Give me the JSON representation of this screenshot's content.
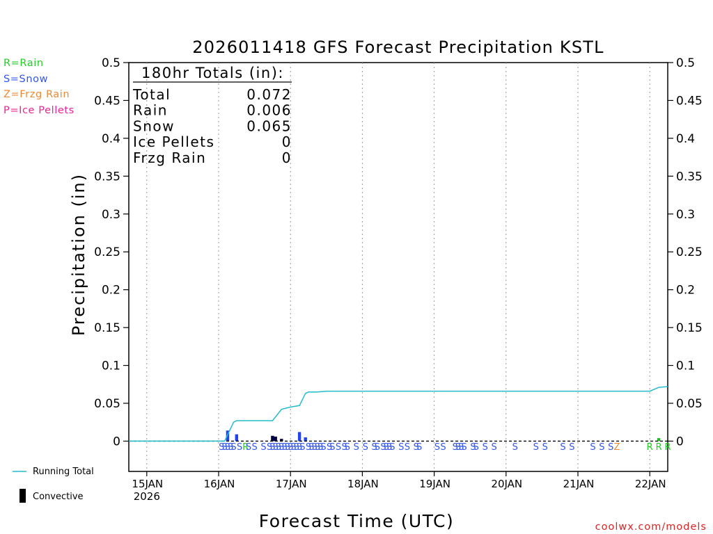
{
  "chart_data": {
    "type": "bar",
    "title": "2026011418 GFS Forecast Precipitation KSTL",
    "xlabel": "Forecast Time (UTC)",
    "ylabel": "Precipitation (in)",
    "ylim": [
      -0.04,
      0.5
    ],
    "yticks": [
      0,
      0.05,
      0.1,
      0.15,
      0.2,
      0.25,
      0.3,
      0.35,
      0.4,
      0.45,
      0.5
    ],
    "ytick_labels": [
      "0",
      "0.05",
      "0.1",
      "0.15",
      "0.2",
      "0.25",
      "0.3",
      "0.35",
      "0.4",
      "0.45",
      "0.5"
    ],
    "x_start": "2026-01-14 18:00",
    "x_end": "2026-01-22 06:00",
    "x_ticks": [
      {
        "time": "2026-01-15 00:00",
        "label": "15JAN",
        "sublabel": "2026"
      },
      {
        "time": "2026-01-16 00:00",
        "label": "16JAN",
        "sublabel": ""
      },
      {
        "time": "2026-01-17 00:00",
        "label": "17JAN",
        "sublabel": ""
      },
      {
        "time": "2026-01-18 00:00",
        "label": "18JAN",
        "sublabel": ""
      },
      {
        "time": "2026-01-19 00:00",
        "label": "19JAN",
        "sublabel": ""
      },
      {
        "time": "2026-01-20 00:00",
        "label": "20JAN",
        "sublabel": ""
      },
      {
        "time": "2026-01-21 00:00",
        "label": "21JAN",
        "sublabel": ""
      },
      {
        "time": "2026-01-22 00:00",
        "label": "22JAN",
        "sublabel": ""
      }
    ],
    "grid": "vertical dotted",
    "totals": {
      "header": "180hr Totals (in):",
      "rows": [
        {
          "label": "Total",
          "value": "0.072"
        },
        {
          "label": "Rain",
          "value": "0.006"
        },
        {
          "label": "Snow",
          "value": "0.065"
        },
        {
          "label": "Ice Pellets",
          "value": "0"
        },
        {
          "label": "Frzg Rain",
          "value": "0"
        }
      ]
    },
    "precip_type_legend": [
      {
        "text": "R=Rain",
        "color": "#22cc22"
      },
      {
        "text": "S=Snow",
        "color": "#3355ee"
      },
      {
        "text": "Z=Frzg Rain",
        "color": "#ee8833"
      },
      {
        "text": "P=Ice Pellets",
        "color": "#ee2299"
      }
    ],
    "series_legend": [
      {
        "name": "Running Total",
        "color": "#22bbcc",
        "kind": "line"
      },
      {
        "name": "Convective",
        "color": "#000000",
        "kind": "bar"
      }
    ],
    "bars": [
      {
        "time": "2026-01-16 03:00",
        "value": 0.014,
        "type": "snow"
      },
      {
        "time": "2026-01-16 06:00",
        "value": 0.009,
        "type": "snow"
      },
      {
        "time": "2026-01-16 18:00",
        "value": 0.007,
        "type": "convective"
      },
      {
        "time": "2026-01-16 19:00",
        "value": 0.006,
        "type": "convective"
      },
      {
        "time": "2026-01-16 21:00",
        "value": 0.003,
        "type": "convective"
      },
      {
        "time": "2026-01-17 03:00",
        "value": 0.012,
        "type": "snow"
      },
      {
        "time": "2026-01-17 05:00",
        "value": 0.005,
        "type": "snow"
      },
      {
        "time": "2026-01-22 03:00",
        "value": 0.004,
        "type": "rain"
      }
    ],
    "running_total": [
      {
        "time": "2026-01-14 18:00",
        "value": 0
      },
      {
        "time": "2026-01-16 00:00",
        "value": 0
      },
      {
        "time": "2026-01-16 02:00",
        "value": 0
      },
      {
        "time": "2026-01-16 05:00",
        "value": 0.025
      },
      {
        "time": "2026-01-16 06:00",
        "value": 0.027
      },
      {
        "time": "2026-01-16 18:00",
        "value": 0.027
      },
      {
        "time": "2026-01-16 21:00",
        "value": 0.042
      },
      {
        "time": "2026-01-17 00:00",
        "value": 0.045
      },
      {
        "time": "2026-01-17 03:00",
        "value": 0.047
      },
      {
        "time": "2026-01-17 05:00",
        "value": 0.063
      },
      {
        "time": "2026-01-17 06:00",
        "value": 0.065
      },
      {
        "time": "2026-01-17 09:00",
        "value": 0.065
      },
      {
        "time": "2026-01-17 12:00",
        "value": 0.066
      },
      {
        "time": "2026-01-22 00:00",
        "value": 0.066
      },
      {
        "time": "2026-01-22 03:00",
        "value": 0.071
      },
      {
        "time": "2026-01-22 06:00",
        "value": 0.072
      }
    ],
    "type_markers": [
      {
        "time": "2026-01-16 01:00",
        "code": "S"
      },
      {
        "time": "2026-01-16 02:00",
        "code": "S"
      },
      {
        "time": "2026-01-16 03:00",
        "code": "S"
      },
      {
        "time": "2026-01-16 04:00",
        "code": "S"
      },
      {
        "time": "2026-01-16 05:00",
        "code": "S"
      },
      {
        "time": "2026-01-16 07:00",
        "code": "S"
      },
      {
        "time": "2026-01-16 09:00",
        "code": "R"
      },
      {
        "time": "2026-01-16 10:00",
        "code": "S"
      },
      {
        "time": "2026-01-16 12:00",
        "code": "S"
      },
      {
        "time": "2026-01-16 15:00",
        "code": "S"
      },
      {
        "time": "2026-01-16 17:00",
        "code": "S"
      },
      {
        "time": "2026-01-16 18:00",
        "code": "S"
      },
      {
        "time": "2026-01-16 19:00",
        "code": "S"
      },
      {
        "time": "2026-01-16 20:00",
        "code": "S"
      },
      {
        "time": "2026-01-16 21:00",
        "code": "S"
      },
      {
        "time": "2026-01-16 22:00",
        "code": "S"
      },
      {
        "time": "2026-01-16 23:00",
        "code": "S"
      },
      {
        "time": "2026-01-17 00:00",
        "code": "S"
      },
      {
        "time": "2026-01-17 01:00",
        "code": "S"
      },
      {
        "time": "2026-01-17 02:00",
        "code": "S"
      },
      {
        "time": "2026-01-17 03:00",
        "code": "S"
      },
      {
        "time": "2026-01-17 04:00",
        "code": "S"
      },
      {
        "time": "2026-01-17 06:00",
        "code": "S"
      },
      {
        "time": "2026-01-17 07:00",
        "code": "S"
      },
      {
        "time": "2026-01-17 08:00",
        "code": "S"
      },
      {
        "time": "2026-01-17 09:00",
        "code": "S"
      },
      {
        "time": "2026-01-17 10:00",
        "code": "S"
      },
      {
        "time": "2026-01-17 11:00",
        "code": "S"
      },
      {
        "time": "2026-01-17 13:00",
        "code": "S"
      },
      {
        "time": "2026-01-17 14:00",
        "code": "S"
      },
      {
        "time": "2026-01-17 16:00",
        "code": "S"
      },
      {
        "time": "2026-01-17 18:00",
        "code": "S"
      },
      {
        "time": "2026-01-17 19:00",
        "code": "S"
      },
      {
        "time": "2026-01-17 22:00",
        "code": "S"
      },
      {
        "time": "2026-01-18 01:00",
        "code": "S"
      },
      {
        "time": "2026-01-18 04:00",
        "code": "S"
      },
      {
        "time": "2026-01-18 05:00",
        "code": "S"
      },
      {
        "time": "2026-01-18 07:00",
        "code": "S"
      },
      {
        "time": "2026-01-18 08:00",
        "code": "S"
      },
      {
        "time": "2026-01-18 09:00",
        "code": "S"
      },
      {
        "time": "2026-01-18 10:00",
        "code": "S"
      },
      {
        "time": "2026-01-18 13:00",
        "code": "S"
      },
      {
        "time": "2026-01-18 15:00",
        "code": "S"
      },
      {
        "time": "2026-01-18 18:00",
        "code": "S"
      },
      {
        "time": "2026-01-18 19:00",
        "code": "S"
      },
      {
        "time": "2026-01-19 01:00",
        "code": "S"
      },
      {
        "time": "2026-01-19 03:00",
        "code": "S"
      },
      {
        "time": "2026-01-19 07:00",
        "code": "S"
      },
      {
        "time": "2026-01-19 08:00",
        "code": "S"
      },
      {
        "time": "2026-01-19 09:00",
        "code": "S"
      },
      {
        "time": "2026-01-19 10:00",
        "code": "S"
      },
      {
        "time": "2026-01-19 13:00",
        "code": "S"
      },
      {
        "time": "2026-01-19 14:00",
        "code": "S"
      },
      {
        "time": "2026-01-19 17:00",
        "code": "S"
      },
      {
        "time": "2026-01-19 20:00",
        "code": "S"
      },
      {
        "time": "2026-01-20 03:00",
        "code": "S"
      },
      {
        "time": "2026-01-20 10:00",
        "code": "S"
      },
      {
        "time": "2026-01-20 13:00",
        "code": "S"
      },
      {
        "time": "2026-01-20 19:00",
        "code": "S"
      },
      {
        "time": "2026-01-20 22:00",
        "code": "S"
      },
      {
        "time": "2026-01-21 05:00",
        "code": "S"
      },
      {
        "time": "2026-01-21 08:00",
        "code": "S"
      },
      {
        "time": "2026-01-21 11:00",
        "code": "S"
      },
      {
        "time": "2026-01-21 13:00",
        "code": "Z"
      },
      {
        "time": "2026-01-22 00:00",
        "code": "R"
      },
      {
        "time": "2026-01-22 03:00",
        "code": "R"
      },
      {
        "time": "2026-01-22 06:00",
        "code": "R"
      }
    ],
    "credit": "coolwx.com/models"
  }
}
